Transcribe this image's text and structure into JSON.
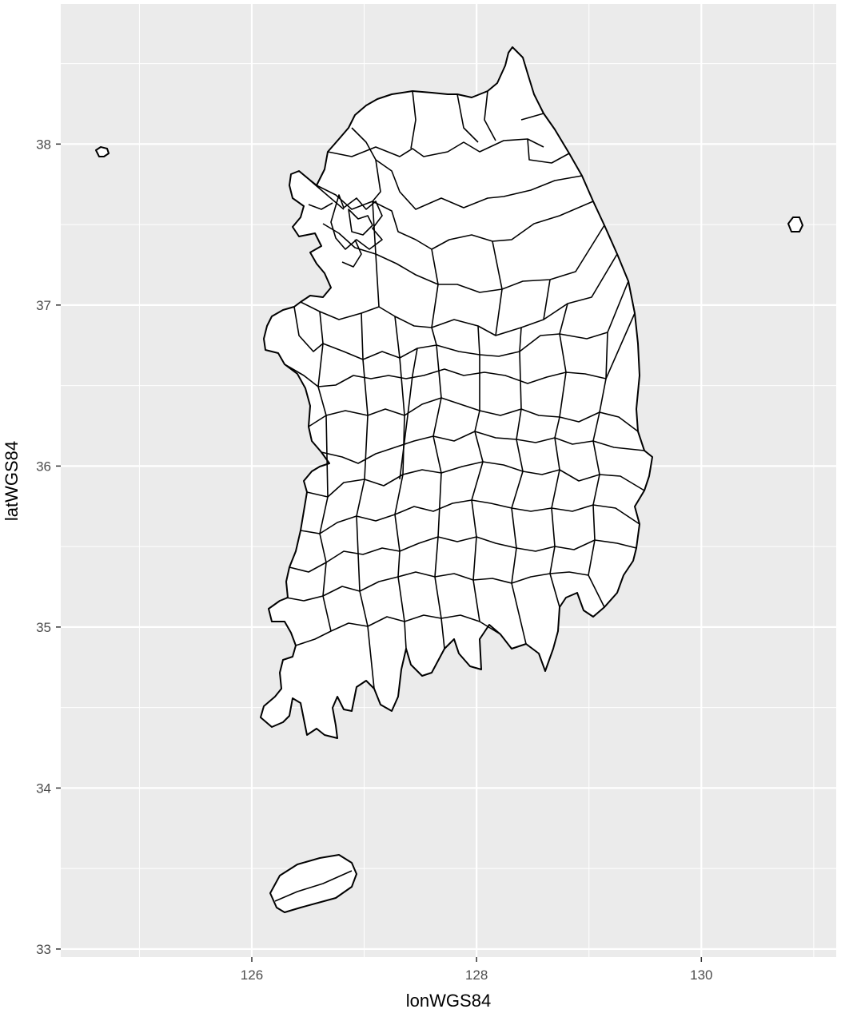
{
  "chart_data": {
    "type": "map",
    "xlabel": "lonWGS84",
    "ylabel": "latWGS84",
    "xlim": [
      124.3,
      131.2
    ],
    "ylim": [
      32.95,
      38.87
    ],
    "x_ticks": [
      126,
      128,
      130
    ],
    "y_ticks": [
      33,
      34,
      35,
      36,
      37,
      38
    ],
    "x_tick_labels": [
      "126",
      "128",
      "130"
    ],
    "y_tick_labels": [
      "33",
      "34",
      "35",
      "36",
      "37",
      "38"
    ],
    "grid": true,
    "panel_color": "#ebebeb",
    "grid_color": "#ffffff",
    "fill_color": "#ffffff",
    "outline_color": "#000000"
  }
}
